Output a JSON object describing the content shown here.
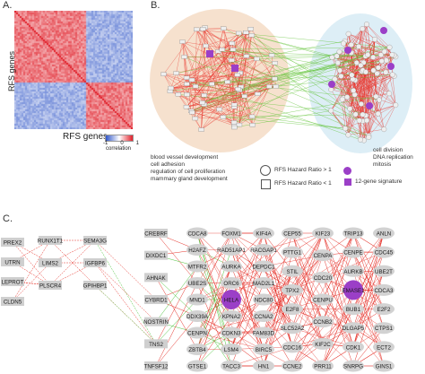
{
  "panels": {
    "a": "A.",
    "b": "B.",
    "c": "C."
  },
  "heatmap": {
    "y_label": "RFS genes",
    "x_label": "RFS genes",
    "colorbar": {
      "ticks": [
        "-1",
        "0",
        "1"
      ],
      "caption": "correlation"
    },
    "colors": {
      "negative": "#2f55c8",
      "positive": "#e0202a"
    }
  },
  "network": {
    "left_cluster_terms": [
      "blood vessel development",
      "cell adhesion",
      "regulation of cell proliferation",
      "mammary gland development"
    ],
    "right_cluster_terms": [
      "cell division",
      "DNA replication",
      "mitosis"
    ],
    "legend": {
      "hr_gt1": "RFS Hazard Ratio > 1",
      "hr_lt1": "RFS Hazard Ratio < 1",
      "signature": "12-gene signature"
    },
    "colors": {
      "edge_positive": "#e8332b",
      "edge_negative": "#63c43a",
      "signature": "#9b3fc7",
      "cluster_left_bg": "#f5dcc6",
      "cluster_right_bg": "#d9ecf5"
    }
  },
  "gene_network": {
    "columns": [
      [
        "PREX2",
        "UTRN",
        "LEPROT",
        "CLDN5"
      ],
      [
        "RUNX1T1",
        "LIMS2",
        "PLSCR4"
      ],
      [
        "SEMA3G",
        "IGFBP6",
        "GPIHBP1"
      ],
      [
        "CREBRF",
        "DIXDC1",
        "AHNAK",
        "CYBRD1",
        "NOSTRIN",
        "TNS2",
        "TNFSF12"
      ],
      [
        "CDCA8",
        "H2AFZ",
        "MTFR2",
        "UBE2S",
        "MND1",
        "DDX39A",
        "CENPN",
        "ZBTB4",
        "GTSE1"
      ],
      [
        "FOXM1",
        "RAD51AP1",
        "AURKA",
        "ORC6",
        "HELA",
        "KPNA2",
        "CDKN3",
        "LSM4",
        "TACC3"
      ],
      [
        "KIF4A",
        "RACGAP1",
        "DEPDC1",
        "MAD2L1",
        "NDC80",
        "CCNA2",
        "FAM83D",
        "BIRC5",
        "HN1"
      ],
      [
        "CEP55",
        "PTTG1",
        "STIL",
        "TPX2",
        "E2F8",
        "SLC52A2",
        "CDC16",
        "CCNE2"
      ],
      [
        "KIF23",
        "CENPA",
        "CDC20",
        "CENPU",
        "CCNB2",
        "KIF2C",
        "PRR11"
      ],
      [
        "TRIP13",
        "CENPE",
        "AURKB",
        "EMASE1",
        "BUB1",
        "DLGAP5",
        "CDK1",
        "SNRPG"
      ],
      [
        "ANLN",
        "CDC45",
        "UBE2T",
        "CDCA3",
        "E2F2",
        "CTPS1",
        "ECT2",
        "GINS1"
      ]
    ],
    "highlighted": [
      "HELA",
      "EMASE1"
    ]
  }
}
